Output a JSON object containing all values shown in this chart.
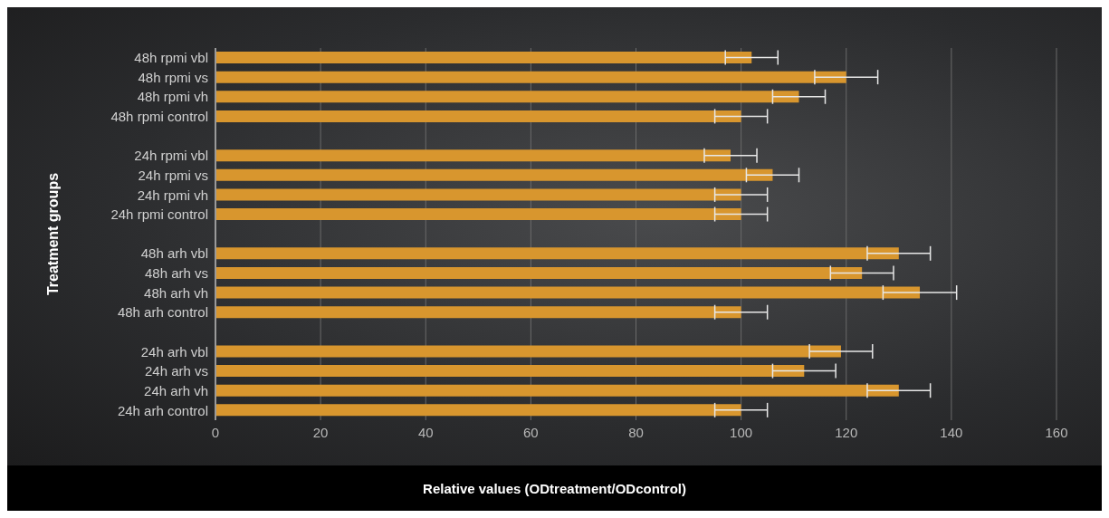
{
  "chart_data": {
    "type": "bar",
    "orientation": "horizontal",
    "xlabel": "Relative values (ODtreatment/ODcontrol)",
    "ylabel": "Treatment groups",
    "categories": [
      "48h rpmi vbl",
      "48h rpmi vs",
      "48h rpmi vh",
      "48h rpmi control",
      null,
      "24h rpmi vbl",
      "24h rpmi vs",
      "24h rpmi vh",
      "24h rpmi control",
      null,
      "48h arh vbl",
      "48h arh vs",
      "48h arh vh",
      "48h arh control",
      null,
      "24h arh vbl",
      "24h arh vs",
      "24h arh vh",
      "24h arh control"
    ],
    "values": [
      102,
      120,
      111,
      100,
      null,
      98,
      106,
      100,
      100,
      null,
      130,
      123,
      134,
      100,
      null,
      119,
      112,
      130,
      100
    ],
    "errors": [
      5,
      6,
      5,
      5,
      null,
      5,
      5,
      5,
      5,
      null,
      6,
      6,
      7,
      5,
      null,
      6,
      6,
      6,
      5
    ],
    "color": "#d8962e",
    "xlim": [
      0,
      160
    ],
    "xticks": [
      0,
      20,
      40,
      60,
      80,
      100,
      120,
      140,
      160
    ],
    "grid": "x"
  }
}
